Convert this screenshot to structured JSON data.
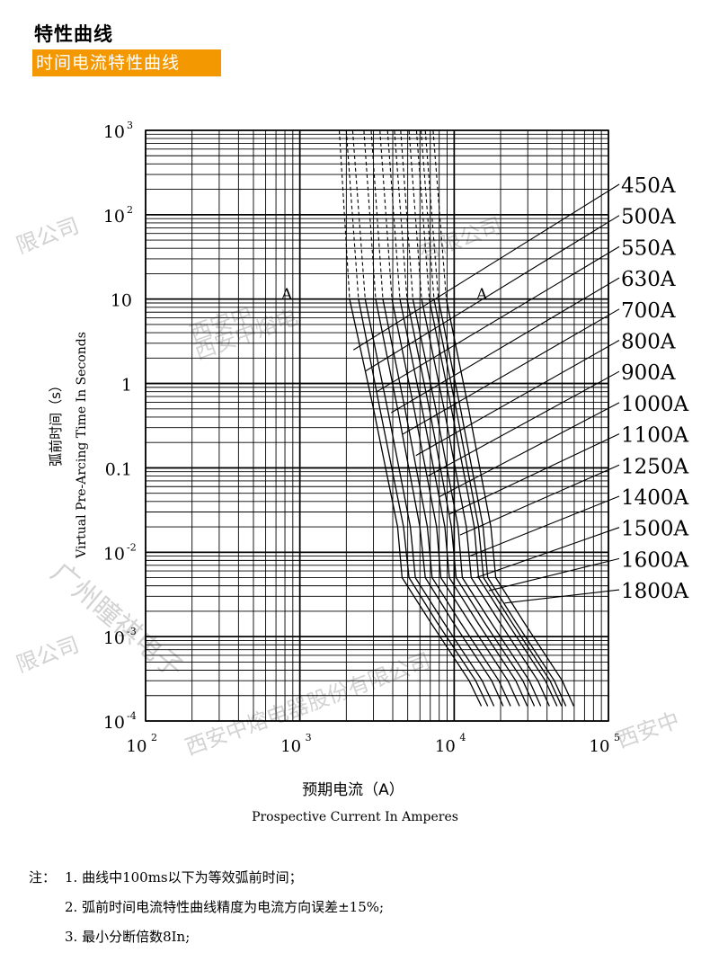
{
  "header": {
    "title": "特性曲线",
    "subtitle": "时间电流特性曲线"
  },
  "notes": {
    "prefix": "注：",
    "items": [
      "1. 曲线中100ms以下为等效弧前时间；",
      "2. 弧前时间电流特性曲线精度为电流方向误差±15%;",
      "3. 最小分断倍数8In;"
    ]
  },
  "watermark": {
    "texts": [
      "限公司",
      "西安中",
      "西安中熔电",
      "广州瞳祺电子",
      "限公司",
      "西安中熔电器股份有限公司",
      "西安中",
      "有限公司"
    ],
    "color": "#c8c8c8"
  },
  "chart_data": {
    "type": "line",
    "x_scale": "log",
    "y_scale": "log",
    "xlim": [
      100,
      100000
    ],
    "ylim": [
      0.0001,
      1000
    ],
    "x_ticks": [
      {
        "base": "10",
        "exp": "2"
      },
      {
        "base": "10",
        "exp": "3"
      },
      {
        "base": "10",
        "exp": "4"
      },
      {
        "base": "10",
        "exp": "5"
      }
    ],
    "y_ticks": [
      {
        "base": "10",
        "exp": "3"
      },
      {
        "base": "10",
        "exp": "2"
      },
      {
        "base": "10",
        "exp": ""
      },
      {
        "base": "1",
        "exp": ""
      },
      {
        "base": "0.1",
        "exp": ""
      },
      {
        "base": "10",
        "exp": "-2"
      },
      {
        "base": "10",
        "exp": "-3"
      },
      {
        "base": "10",
        "exp": "-4"
      }
    ],
    "xlabel_cn": "预期电流（A）",
    "xlabel_en": "Prospective Current In Amperes",
    "ylabel_cn": "弧前时间（s）",
    "ylabel_en": "Virtual Pre-Arcing Time In Seconds",
    "annotations": [
      "A",
      "A"
    ],
    "grid": true,
    "series": [
      {
        "name": "450A",
        "points": [
          [
            1800,
            1000
          ],
          [
            2100,
            10
          ],
          [
            3000,
            0.5
          ],
          [
            4300,
            0.02
          ],
          [
            4600,
            0.005
          ],
          [
            7000,
            0.0015
          ],
          [
            12500,
            0.0003
          ],
          [
            15000,
            0.00015
          ]
        ]
      },
      {
        "name": "500A",
        "points": [
          [
            2000,
            1000
          ],
          [
            2400,
            10
          ],
          [
            3300,
            0.5
          ],
          [
            4700,
            0.02
          ],
          [
            5100,
            0.005
          ],
          [
            7700,
            0.0015
          ],
          [
            13800,
            0.0003
          ],
          [
            16500,
            0.00015
          ]
        ]
      },
      {
        "name": "550A",
        "points": [
          [
            2200,
            1000
          ],
          [
            2650,
            10
          ],
          [
            3700,
            0.5
          ],
          [
            5200,
            0.02
          ],
          [
            5600,
            0.005
          ],
          [
            8500,
            0.0015
          ],
          [
            15200,
            0.0003
          ],
          [
            18100,
            0.00015
          ]
        ]
      },
      {
        "name": "630A",
        "points": [
          [
            2600,
            1000
          ],
          [
            3100,
            10
          ],
          [
            4300,
            0.5
          ],
          [
            6000,
            0.02
          ],
          [
            6500,
            0.005
          ],
          [
            9800,
            0.0015
          ],
          [
            17500,
            0.0003
          ],
          [
            20800,
            0.00015
          ]
        ]
      },
      {
        "name": "700A",
        "points": [
          [
            2900,
            1000
          ],
          [
            3450,
            10
          ],
          [
            4800,
            0.5
          ],
          [
            6700,
            0.02
          ],
          [
            7200,
            0.005
          ],
          [
            10900,
            0.0015
          ],
          [
            19500,
            0.0003
          ],
          [
            23200,
            0.00015
          ]
        ]
      },
      {
        "name": "800A",
        "points": [
          [
            3300,
            1000
          ],
          [
            3950,
            10
          ],
          [
            5500,
            0.5
          ],
          [
            7700,
            0.02
          ],
          [
            8200,
            0.005
          ],
          [
            12500,
            0.0015
          ],
          [
            22300,
            0.0003
          ],
          [
            26500,
            0.00015
          ]
        ]
      },
      {
        "name": "900A",
        "points": [
          [
            3700,
            1000
          ],
          [
            4450,
            10
          ],
          [
            6200,
            0.5
          ],
          [
            8700,
            0.02
          ],
          [
            9300,
            0.005
          ],
          [
            14100,
            0.0015
          ],
          [
            25100,
            0.0003
          ],
          [
            29800,
            0.00015
          ]
        ]
      },
      {
        "name": "1000A",
        "points": [
          [
            4100,
            1000
          ],
          [
            4950,
            10
          ],
          [
            6900,
            0.5
          ],
          [
            9600,
            0.02
          ],
          [
            10300,
            0.005
          ],
          [
            15600,
            0.0015
          ],
          [
            27900,
            0.0003
          ],
          [
            33100,
            0.00015
          ]
        ]
      },
      {
        "name": "1100A",
        "points": [
          [
            4500,
            1000
          ],
          [
            5400,
            10
          ],
          [
            7600,
            0.5
          ],
          [
            10600,
            0.02
          ],
          [
            11300,
            0.005
          ],
          [
            17200,
            0.0015
          ],
          [
            30700,
            0.0003
          ],
          [
            36400,
            0.00015
          ]
        ]
      },
      {
        "name": "1250A",
        "points": [
          [
            5100,
            1000
          ],
          [
            6150,
            10
          ],
          [
            8600,
            0.5
          ],
          [
            12000,
            0.02
          ],
          [
            12900,
            0.005
          ],
          [
            19600,
            0.0015
          ],
          [
            34900,
            0.0003
          ],
          [
            41400,
            0.00015
          ]
        ]
      },
      {
        "name": "1400A",
        "points": [
          [
            5700,
            1000
          ],
          [
            6900,
            10
          ],
          [
            9600,
            0.5
          ],
          [
            13500,
            0.02
          ],
          [
            14400,
            0.005
          ],
          [
            21900,
            0.0015
          ],
          [
            39000,
            0.0003
          ],
          [
            46400,
            0.00015
          ]
        ]
      },
      {
        "name": "1500A",
        "points": [
          [
            6100,
            1000
          ],
          [
            7400,
            10
          ],
          [
            10300,
            0.5
          ],
          [
            14400,
            0.02
          ],
          [
            15500,
            0.005
          ],
          [
            23500,
            0.0015
          ],
          [
            41800,
            0.0003
          ],
          [
            49700,
            0.00015
          ]
        ]
      },
      {
        "name": "1600A",
        "points": [
          [
            6500,
            1000
          ],
          [
            7900,
            10
          ],
          [
            11000,
            0.5
          ],
          [
            15400,
            0.02
          ],
          [
            16500,
            0.005
          ],
          [
            25000,
            0.0015
          ],
          [
            44600,
            0.0003
          ],
          [
            53000,
            0.00015
          ]
        ]
      },
      {
        "name": "1800A",
        "points": [
          [
            7300,
            1000
          ],
          [
            8900,
            10
          ],
          [
            12400,
            0.5
          ],
          [
            17300,
            0.02
          ],
          [
            18600,
            0.005
          ],
          [
            28200,
            0.0015
          ],
          [
            50200,
            0.0003
          ],
          [
            59600,
            0.00015
          ]
        ]
      }
    ]
  }
}
